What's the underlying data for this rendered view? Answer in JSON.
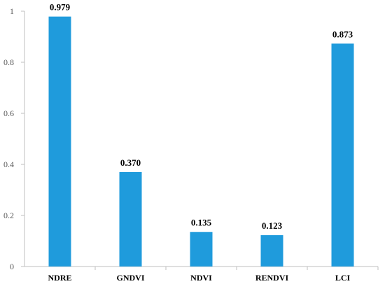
{
  "chart_data": {
    "type": "bar",
    "categories": [
      "NDRE",
      "GNDVI",
      "NDVI",
      "RENDVI",
      "LCI"
    ],
    "values": [
      0.979,
      0.37,
      0.135,
      0.123,
      0.873
    ],
    "data_labels": [
      "0.979",
      "0.370",
      "0.135",
      "0.123",
      "0.873"
    ],
    "y_ticks": [
      "0",
      "0.2",
      "0.4",
      "0.6",
      "0.8",
      "1"
    ],
    "title": "",
    "xlabel": "",
    "ylabel": "",
    "ylim": [
      0,
      1
    ],
    "grid": false,
    "legend": "none",
    "bar_color": "#1f9bdc",
    "axis_color": "#bfbfbf"
  }
}
